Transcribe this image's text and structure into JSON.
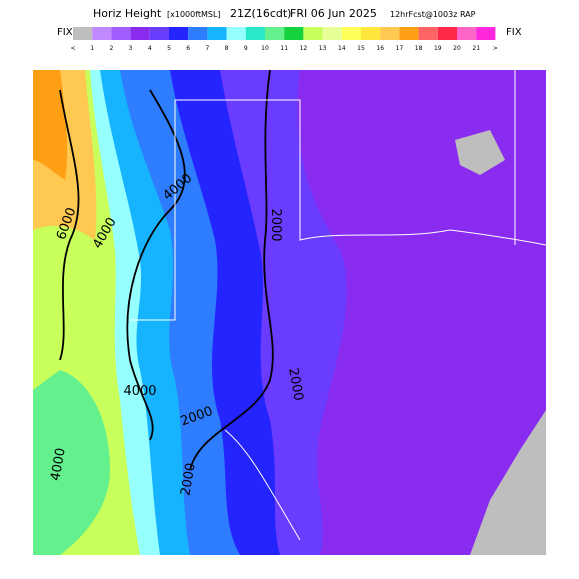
{
  "header": {
    "title": "Horiz Height",
    "units": "[x1000ftMSL]",
    "time": "21Z(16cdt)",
    "date": "FRI 06 Jun 2025",
    "forecast": "12hrFcst@1003z RAP"
  },
  "colorbar": {
    "left_label": "FIX",
    "right_label": "FIX",
    "colors": [
      "#bebebe",
      "#c089ff",
      "#a35cff",
      "#8a2cf0",
      "#6a3cff",
      "#2424ff",
      "#2f7dff",
      "#16b4ff",
      "#96ffff",
      "#28e8c8",
      "#64f08c",
      "#14d23c",
      "#c8ff5a",
      "#e6ff96",
      "#ffff5a",
      "#ffe63c",
      "#ffc850",
      "#ffa014",
      "#ff6464",
      "#ff2846",
      "#ff64c8",
      "#ff28dc"
    ],
    "labels": [
      "<",
      "1",
      "2",
      "3",
      "4",
      "5",
      "6",
      "7",
      "8",
      "9",
      "10",
      "11",
      "12",
      "13",
      "14",
      "15",
      "16",
      "17",
      "18",
      "19",
      "20",
      "21",
      ">"
    ]
  },
  "contour_labels": [
    "6000",
    "4000",
    "4000",
    "2000",
    "2000",
    "4000",
    "2000",
    "4000",
    "2000"
  ]
}
